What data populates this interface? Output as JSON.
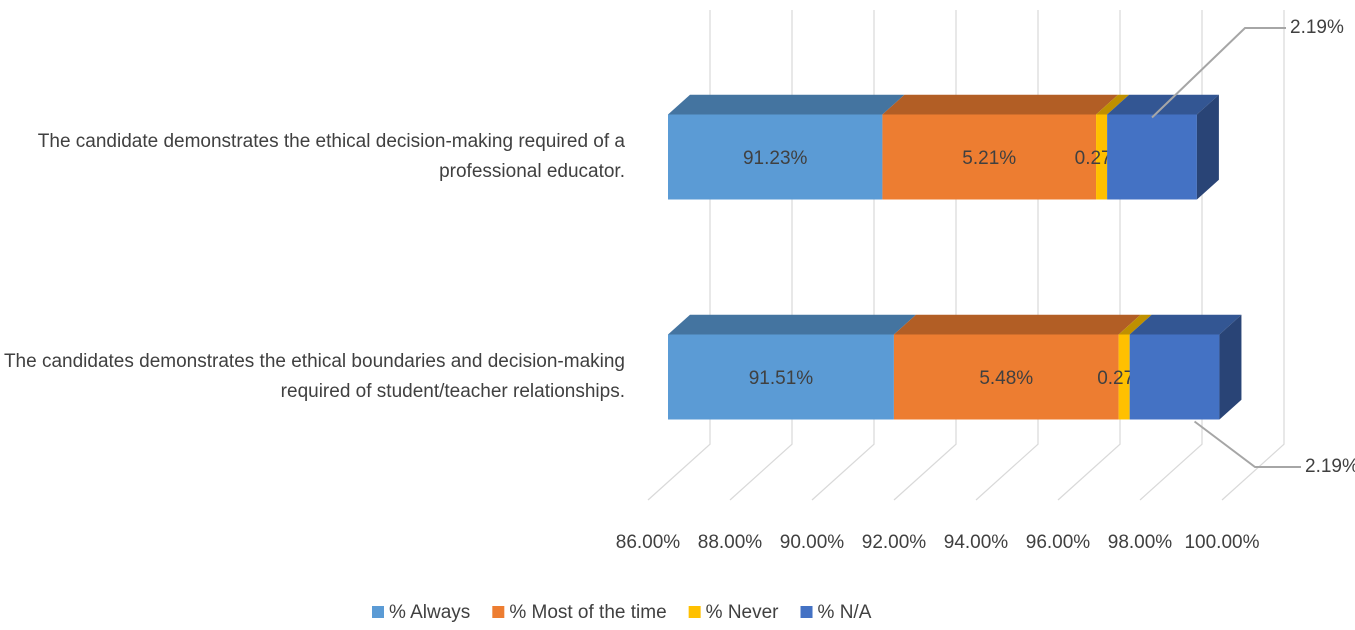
{
  "chart_data": {
    "type": "bar3d_stacked_horizontal",
    "categories": [
      "The candidate demonstrates the ethical decision-making required of a professional educator.",
      "The candidates demonstrates the ethical boundaries and decision-making required of student/teacher relationships."
    ],
    "series": [
      {
        "name": "% Always",
        "color": "#5b9bd5",
        "values": [
          91.23,
          91.51
        ],
        "value_labels": [
          "91.23%",
          "91.51%"
        ]
      },
      {
        "name": "% Most of the time",
        "color": "#ed7d31",
        "values": [
          5.21,
          5.48
        ],
        "value_labels": [
          "5.21%",
          "5.48%"
        ]
      },
      {
        "name": "% Never",
        "color": "#ffc000",
        "values": [
          0.27,
          0.27
        ],
        "value_labels": [
          "0.27%",
          "0.27%"
        ]
      },
      {
        "name": "% N/A",
        "color": "#4472c4",
        "values": [
          2.19,
          2.19
        ],
        "value_labels": [
          "2.19%",
          "2.19%"
        ]
      }
    ],
    "xlim": [
      86,
      100
    ],
    "xticks": [
      {
        "value": 86,
        "label": "86.00%"
      },
      {
        "value": 88,
        "label": "88.00%"
      },
      {
        "value": 90,
        "label": "90.00%"
      },
      {
        "value": 92,
        "label": "92.00%"
      },
      {
        "value": 94,
        "label": "94.00%"
      },
      {
        "value": 96,
        "label": "96.00%"
      },
      {
        "value": 98,
        "label": "98.00%"
      },
      {
        "value": 100,
        "label": "100.00%"
      }
    ],
    "grid": true,
    "legend": "bottom"
  }
}
